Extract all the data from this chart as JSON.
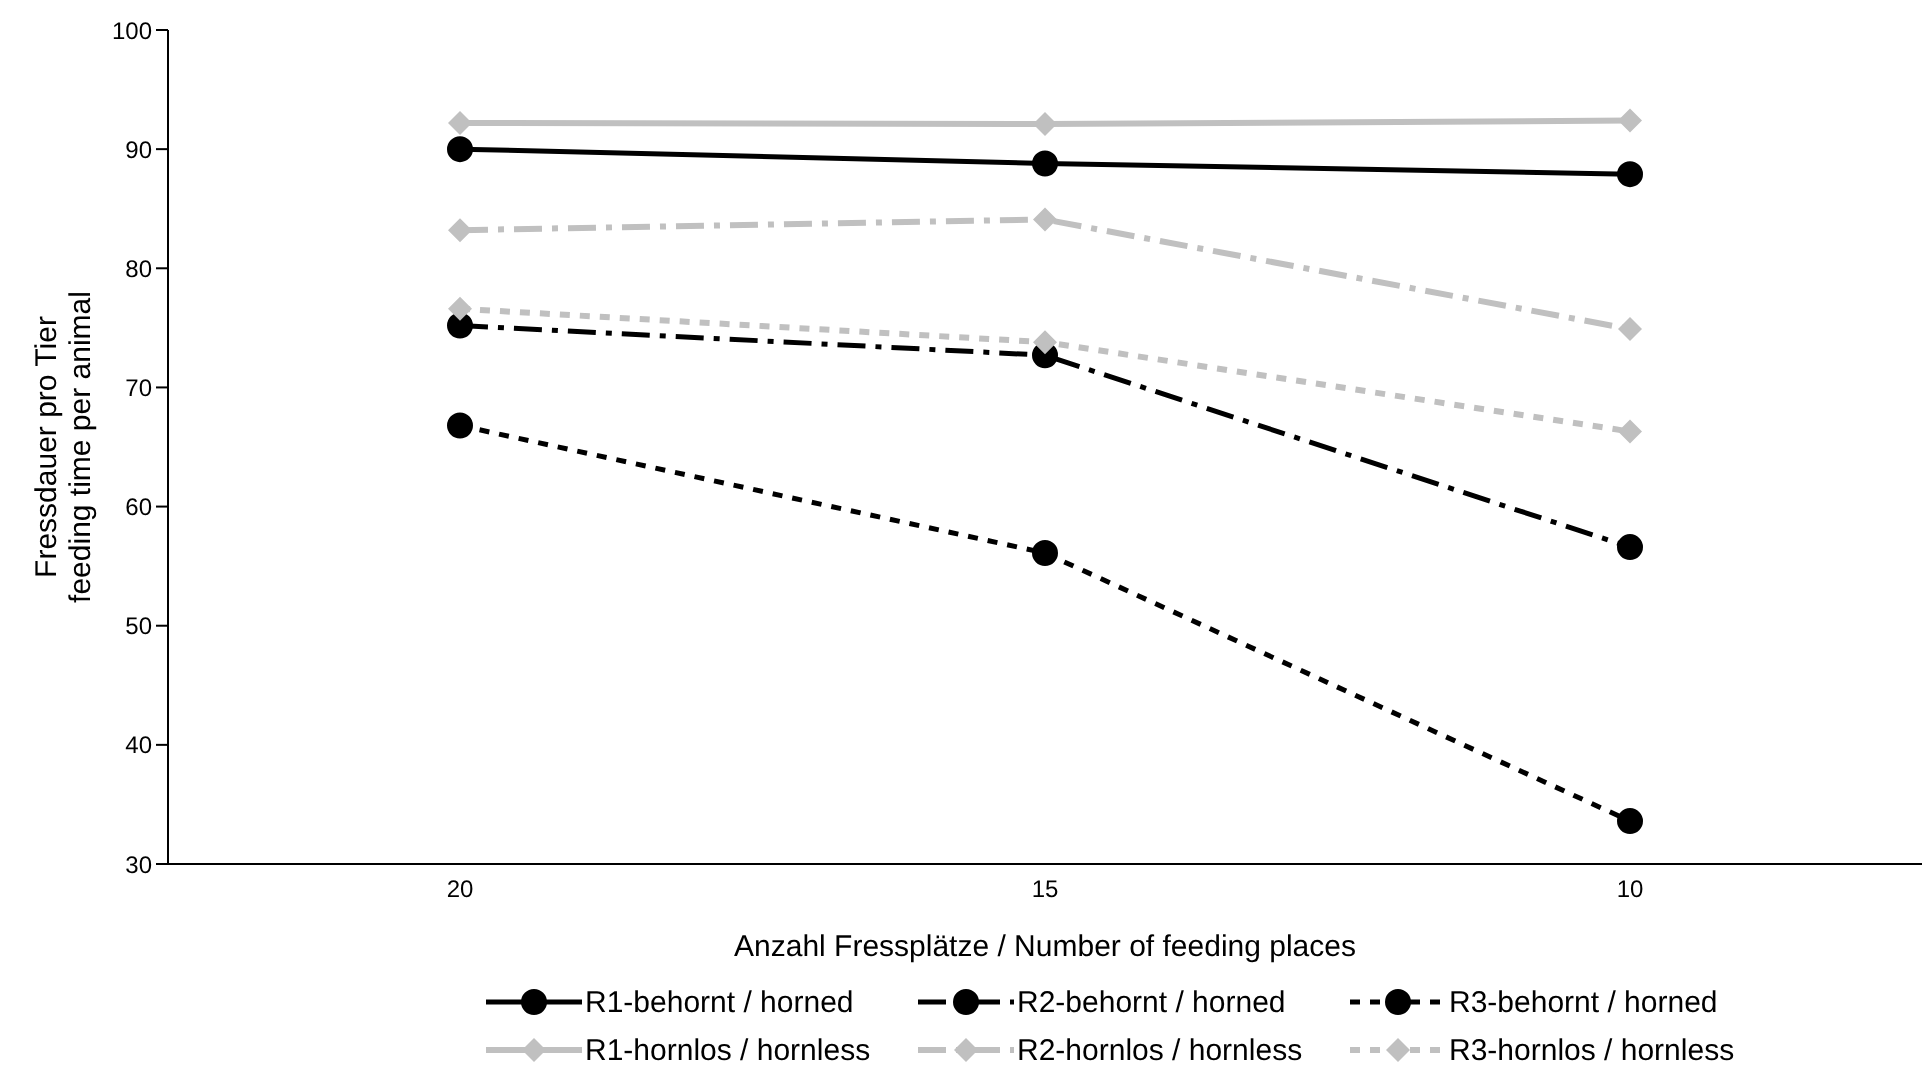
{
  "chart_data": {
    "type": "line",
    "xlabel": "Anzahl Fressplätze / Number of feeding places",
    "ylabel": "Fressdauer pro Tier\nfeeding time per animal",
    "categories": [
      "20",
      "15",
      "10"
    ],
    "ylim": [
      30,
      100
    ],
    "yticks": [
      30,
      40,
      50,
      60,
      70,
      80,
      90,
      100
    ],
    "grid": false,
    "legend": "bottom",
    "series": [
      {
        "name": "R1-behornt / horned",
        "color": "#000000",
        "line_style": "solid",
        "marker": "circle",
        "values": [
          90.0,
          88.8,
          87.9
        ]
      },
      {
        "name": "R2-behornt / horned",
        "color": "#000000",
        "line_style": "dashed",
        "marker": "circle",
        "values": [
          75.2,
          72.7,
          56.6
        ]
      },
      {
        "name": "R3-behornt / horned",
        "color": "#000000",
        "line_style": "dotted",
        "marker": "circle",
        "values": [
          66.8,
          56.1,
          33.6
        ]
      },
      {
        "name": "R1-hornlos / hornless",
        "color": "#c0c0c0",
        "line_style": "solid",
        "marker": "diamond",
        "values": [
          92.2,
          92.1,
          92.4
        ]
      },
      {
        "name": "R2-hornlos / hornless",
        "color": "#c0c0c0",
        "line_style": "dashed",
        "marker": "diamond",
        "values": [
          83.2,
          84.1,
          74.9
        ]
      },
      {
        "name": "R3-hornlos / hornless",
        "color": "#c0c0c0",
        "line_style": "dotted",
        "marker": "diamond",
        "values": [
          76.6,
          73.8,
          66.3
        ]
      }
    ]
  }
}
